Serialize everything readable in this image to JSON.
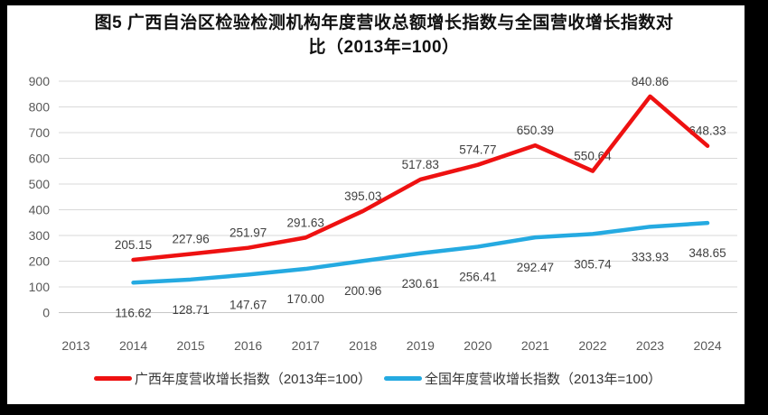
{
  "title": {
    "line1": "图5  广西自治区检验检测机构年度营收总额增长指数与全国营收增长指数对",
    "line2": "比（2013年=100）"
  },
  "chart_data": {
    "type": "line",
    "title": "图5 广西自治区检验检测机构年度营收总额增长指数与全国营收增长指数对比（2013年=100）",
    "categories": [
      "2013",
      "2014",
      "2015",
      "2016",
      "2017",
      "2018",
      "2019",
      "2020",
      "2021",
      "2022",
      "2023",
      "2024"
    ],
    "series": [
      {
        "name": "广西年度营收增长指数（2013年=100）",
        "color": "#ee1111",
        "label_position": "above",
        "values": [
          null,
          205.15,
          227.96,
          251.97,
          291.63,
          395.03,
          517.83,
          574.77,
          650.39,
          550.64,
          840.86,
          648.33
        ]
      },
      {
        "name": "全国年度营收增长指数（2013年=100）",
        "color": "#25aae1",
        "label_position": "below",
        "values": [
          null,
          116.62,
          128.71,
          147.67,
          170.0,
          200.96,
          230.61,
          256.41,
          292.47,
          305.74,
          333.93,
          348.65
        ]
      }
    ],
    "ylim": [
      0,
      900
    ],
    "ytick_step": 100,
    "grid": true,
    "data_labels": true,
    "data_label_decimals": 2,
    "legend_position": "bottom",
    "colors": {
      "gridline": "#d9d9d9",
      "axis_line": "#c6c6c6",
      "tick_text": "#595959",
      "data_label_text": "#404040"
    }
  }
}
